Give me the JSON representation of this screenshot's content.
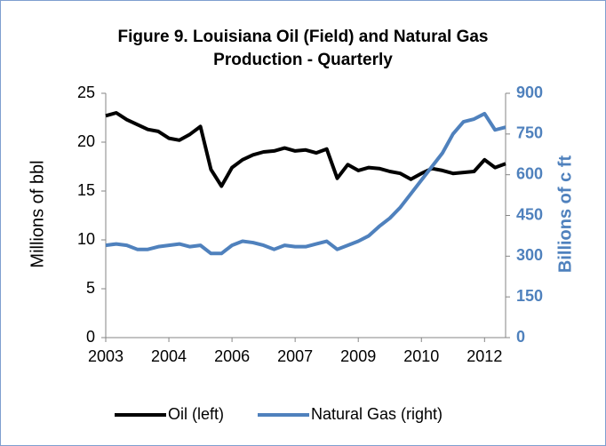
{
  "chart_data": {
    "type": "line",
    "title": "Figure 9. Louisiana Oil (Field) and Natural Gas Production - Quarterly",
    "y_label": "Millions of bbl",
    "y2_label": "Billions of c ft",
    "categories": [
      "2003",
      null,
      null,
      null,
      null,
      null,
      "2004",
      null,
      null,
      null,
      null,
      null,
      "2006",
      null,
      null,
      null,
      null,
      null,
      "2007",
      null,
      null,
      null,
      null,
      null,
      "2009",
      null,
      null,
      null,
      null,
      null,
      "2010",
      null,
      null,
      null,
      null,
      null,
      "2012",
      null,
      null
    ],
    "series": [
      {
        "name": "Oil (left)",
        "color": "#000000",
        "values": [
          22.7,
          23.0,
          22.3,
          21.8,
          21.3,
          21.1,
          20.4,
          20.2,
          20.8,
          21.6,
          17.2,
          15.5,
          17.4,
          18.2,
          18.7,
          19.0,
          19.1,
          19.4,
          19.1,
          19.2,
          18.9,
          19.3,
          16.3,
          17.7,
          17.1,
          17.4,
          17.3,
          17.0,
          16.8,
          16.2,
          16.8,
          17.3,
          17.1,
          16.8,
          16.9,
          17.0,
          18.2,
          17.4,
          17.8
        ]
      },
      {
        "name": "Natural Gas (right)",
        "color": "#4f81bd",
        "axis": "y2",
        "values": [
          340,
          345,
          340,
          325,
          325,
          335,
          340,
          345,
          335,
          340,
          310,
          310,
          340,
          355,
          350,
          340,
          325,
          340,
          335,
          335,
          345,
          355,
          325,
          340,
          355,
          375,
          410,
          440,
          480,
          530,
          580,
          630,
          680,
          750,
          795,
          805,
          825,
          765,
          775
        ]
      }
    ],
    "ylim": [
      0,
      25
    ],
    "yticks": [
      0,
      5,
      10,
      15,
      20,
      25
    ],
    "y2lim": [
      0,
      900
    ],
    "y2ticks": [
      0,
      150,
      300,
      450,
      600,
      750,
      900
    ],
    "legend": "bottom"
  }
}
